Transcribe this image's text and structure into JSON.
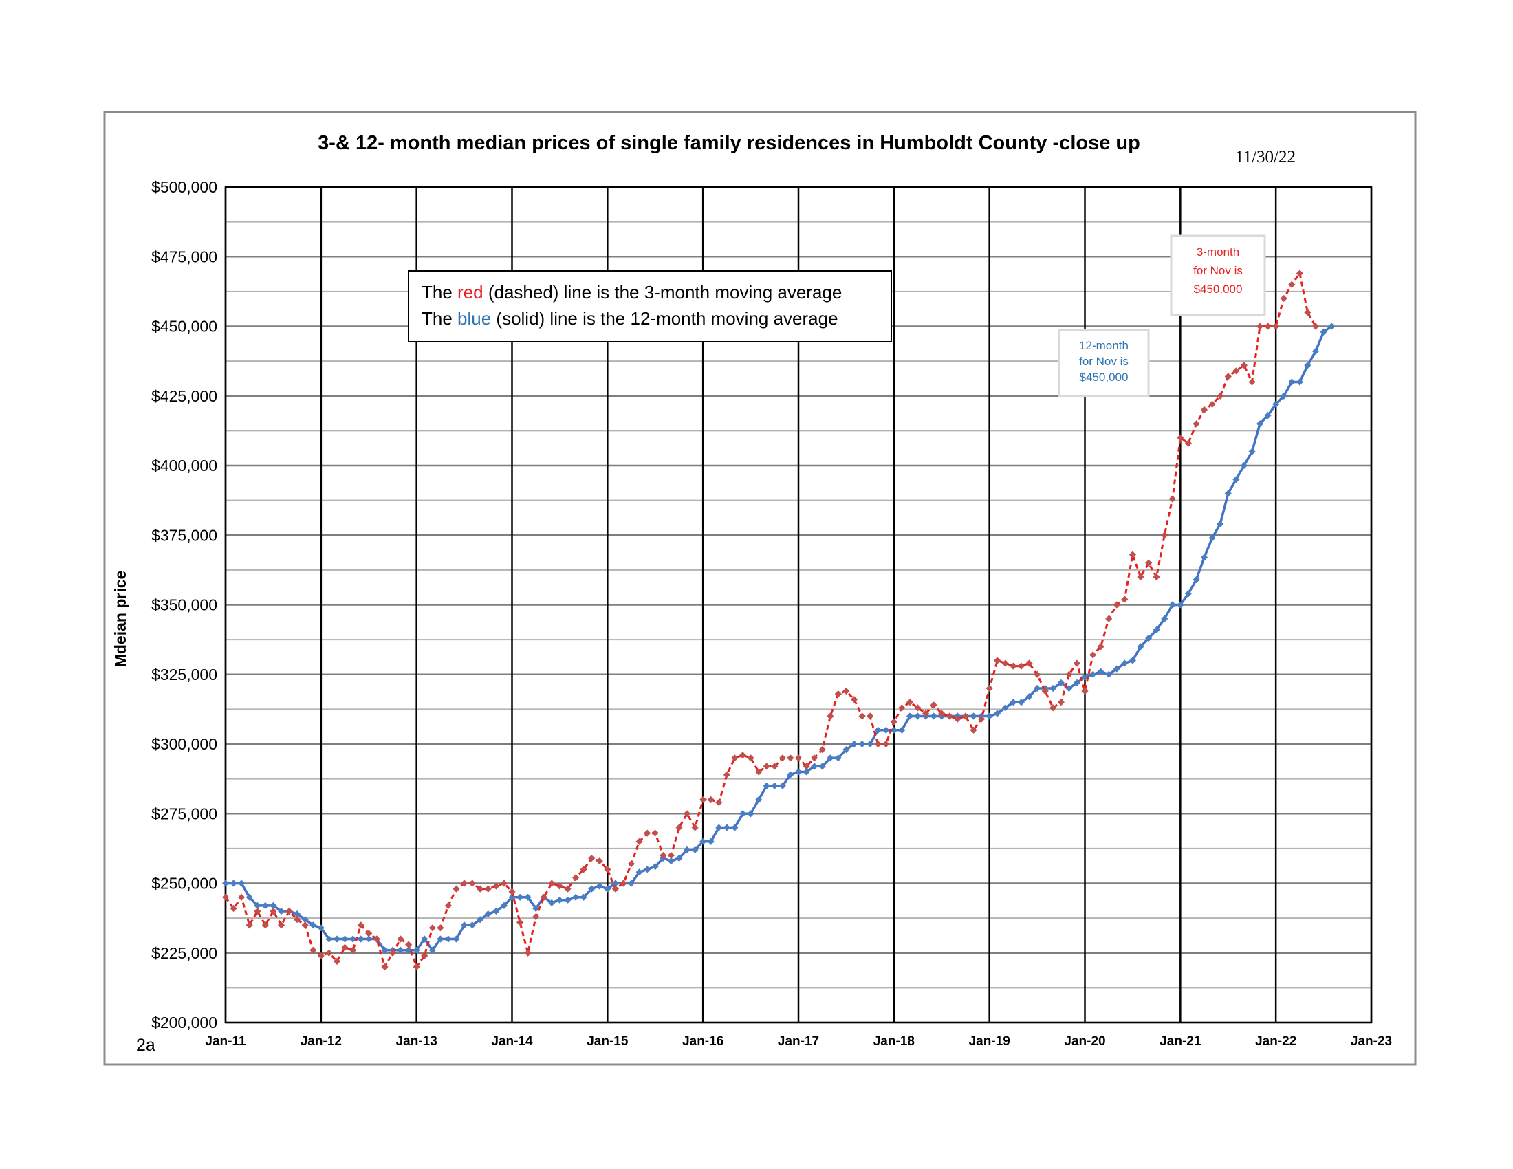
{
  "chart_data": {
    "type": "line",
    "title": "3-& 12- month median prices of single family residences in Humboldt County -close up",
    "date_stamp": "11/30/22",
    "page_label": "2a",
    "ylabel": "Mdeian price",
    "xlabel": "",
    "ylim": [
      200000,
      500000
    ],
    "yticks": [
      "$200,000",
      "$225,000",
      "$250,000",
      "$275,000",
      "$300,000",
      "$325,000",
      "$350,000",
      "$375,000",
      "$400,000",
      "$425,000",
      "$450,000",
      "$475,000",
      "$500,000"
    ],
    "xticks": [
      "Jan-11",
      "Jan-12",
      "Jan-13",
      "Jan-14",
      "Jan-15",
      "Jan-16",
      "Jan-17",
      "Jan-18",
      "Jan-19",
      "Jan-20",
      "Jan-21",
      "Jan-22",
      "Jan-23"
    ],
    "x_units": "months since Jan-11 (Jan-11 = 0)",
    "grid": true,
    "legend": {
      "line1_prefix": "The ",
      "line1_colored": "red",
      "line1_suffix": " (dashed) line is the 3-month moving average",
      "line2_prefix": "The ",
      "line2_colored": "blue",
      "line2_suffix": " (solid) line is the 12-month moving average",
      "placement": "top-left"
    },
    "annotations": [
      {
        "lines": [
          "3-month",
          "for Nov is",
          "$450.000"
        ],
        "color": "#e8201f"
      },
      {
        "lines": [
          "12-month",
          "for Nov is",
          "$450,000"
        ],
        "color": "#2e74b5"
      }
    ],
    "series": [
      {
        "name": "3-month moving average",
        "color": "#e8201f",
        "marker_color": "#c0504d",
        "style": "dashed",
        "values": [
          245000,
          241000,
          245000,
          235000,
          240000,
          235000,
          240000,
          235000,
          240000,
          237000,
          235000,
          226000,
          224000,
          225000,
          222000,
          227000,
          226000,
          235000,
          232000,
          230000,
          220000,
          225000,
          230000,
          228000,
          220000,
          224000,
          234000,
          234000,
          242000,
          248000,
          250000,
          250000,
          248000,
          248000,
          249000,
          250000,
          247000,
          236000,
          225000,
          238000,
          245000,
          250000,
          249000,
          248000,
          252000,
          255000,
          259000,
          258000,
          255000,
          248000,
          250000,
          257000,
          265000,
          268000,
          268000,
          260000,
          260000,
          270000,
          275000,
          270000,
          280000,
          280000,
          279000,
          289000,
          295000,
          296000,
          295000,
          290000,
          292000,
          292000,
          295000,
          295000,
          295000,
          292000,
          295000,
          298000,
          310000,
          318000,
          319000,
          316000,
          310000,
          310000,
          300000,
          300000,
          308000,
          313000,
          315000,
          313000,
          311000,
          314000,
          311000,
          310000,
          309000,
          310000,
          305000,
          309000,
          320000,
          330000,
          329000,
          328000,
          328000,
          329000,
          325000,
          319000,
          313000,
          315000,
          325000,
          329000,
          319000,
          332000,
          335000,
          345000,
          350000,
          352000,
          368000,
          360000,
          365000,
          360000,
          375000,
          388000,
          410000,
          408000,
          415000,
          420000,
          422000,
          425000,
          432000,
          434000,
          436000,
          430000,
          450000,
          450000,
          450000,
          460000,
          465000,
          469000,
          455000,
          450000
        ]
      },
      {
        "name": "12-month moving average",
        "color": "#4472c4",
        "marker_color": "#4a7ec0",
        "style": "solid",
        "values": [
          250000,
          250000,
          250000,
          245000,
          242000,
          242000,
          242000,
          240000,
          240000,
          239000,
          237000,
          235000,
          234000,
          230000,
          230000,
          230000,
          230000,
          230000,
          230000,
          230000,
          226000,
          226000,
          226000,
          226000,
          226000,
          230000,
          226000,
          230000,
          230000,
          230000,
          235000,
          235000,
          237000,
          239000,
          240000,
          242000,
          245000,
          245000,
          245000,
          241000,
          245000,
          243000,
          244000,
          244000,
          245000,
          245000,
          248000,
          249000,
          248000,
          250000,
          250000,
          250000,
          254000,
          255000,
          256000,
          259000,
          258000,
          259000,
          262000,
          262000,
          265000,
          265000,
          270000,
          270000,
          270000,
          275000,
          275000,
          280000,
          285000,
          285000,
          285000,
          289000,
          290000,
          290000,
          292000,
          292000,
          295000,
          295000,
          298000,
          300000,
          300000,
          300000,
          305000,
          305000,
          305000,
          305000,
          310000,
          310000,
          310000,
          310000,
          310000,
          310000,
          310000,
          310000,
          310000,
          310000,
          310000,
          311000,
          313000,
          315000,
          315000,
          317000,
          320000,
          320000,
          320000,
          322000,
          320000,
          322000,
          324000,
          325000,
          326000,
          325000,
          327000,
          329000,
          330000,
          335000,
          338000,
          341000,
          345000,
          350000,
          350000,
          354000,
          359000,
          367000,
          374000,
          379000,
          390000,
          395000,
          400000,
          405000,
          415000,
          418000,
          422000,
          425000,
          430000,
          430000,
          436000,
          441000,
          448000,
          450000
        ]
      }
    ]
  }
}
